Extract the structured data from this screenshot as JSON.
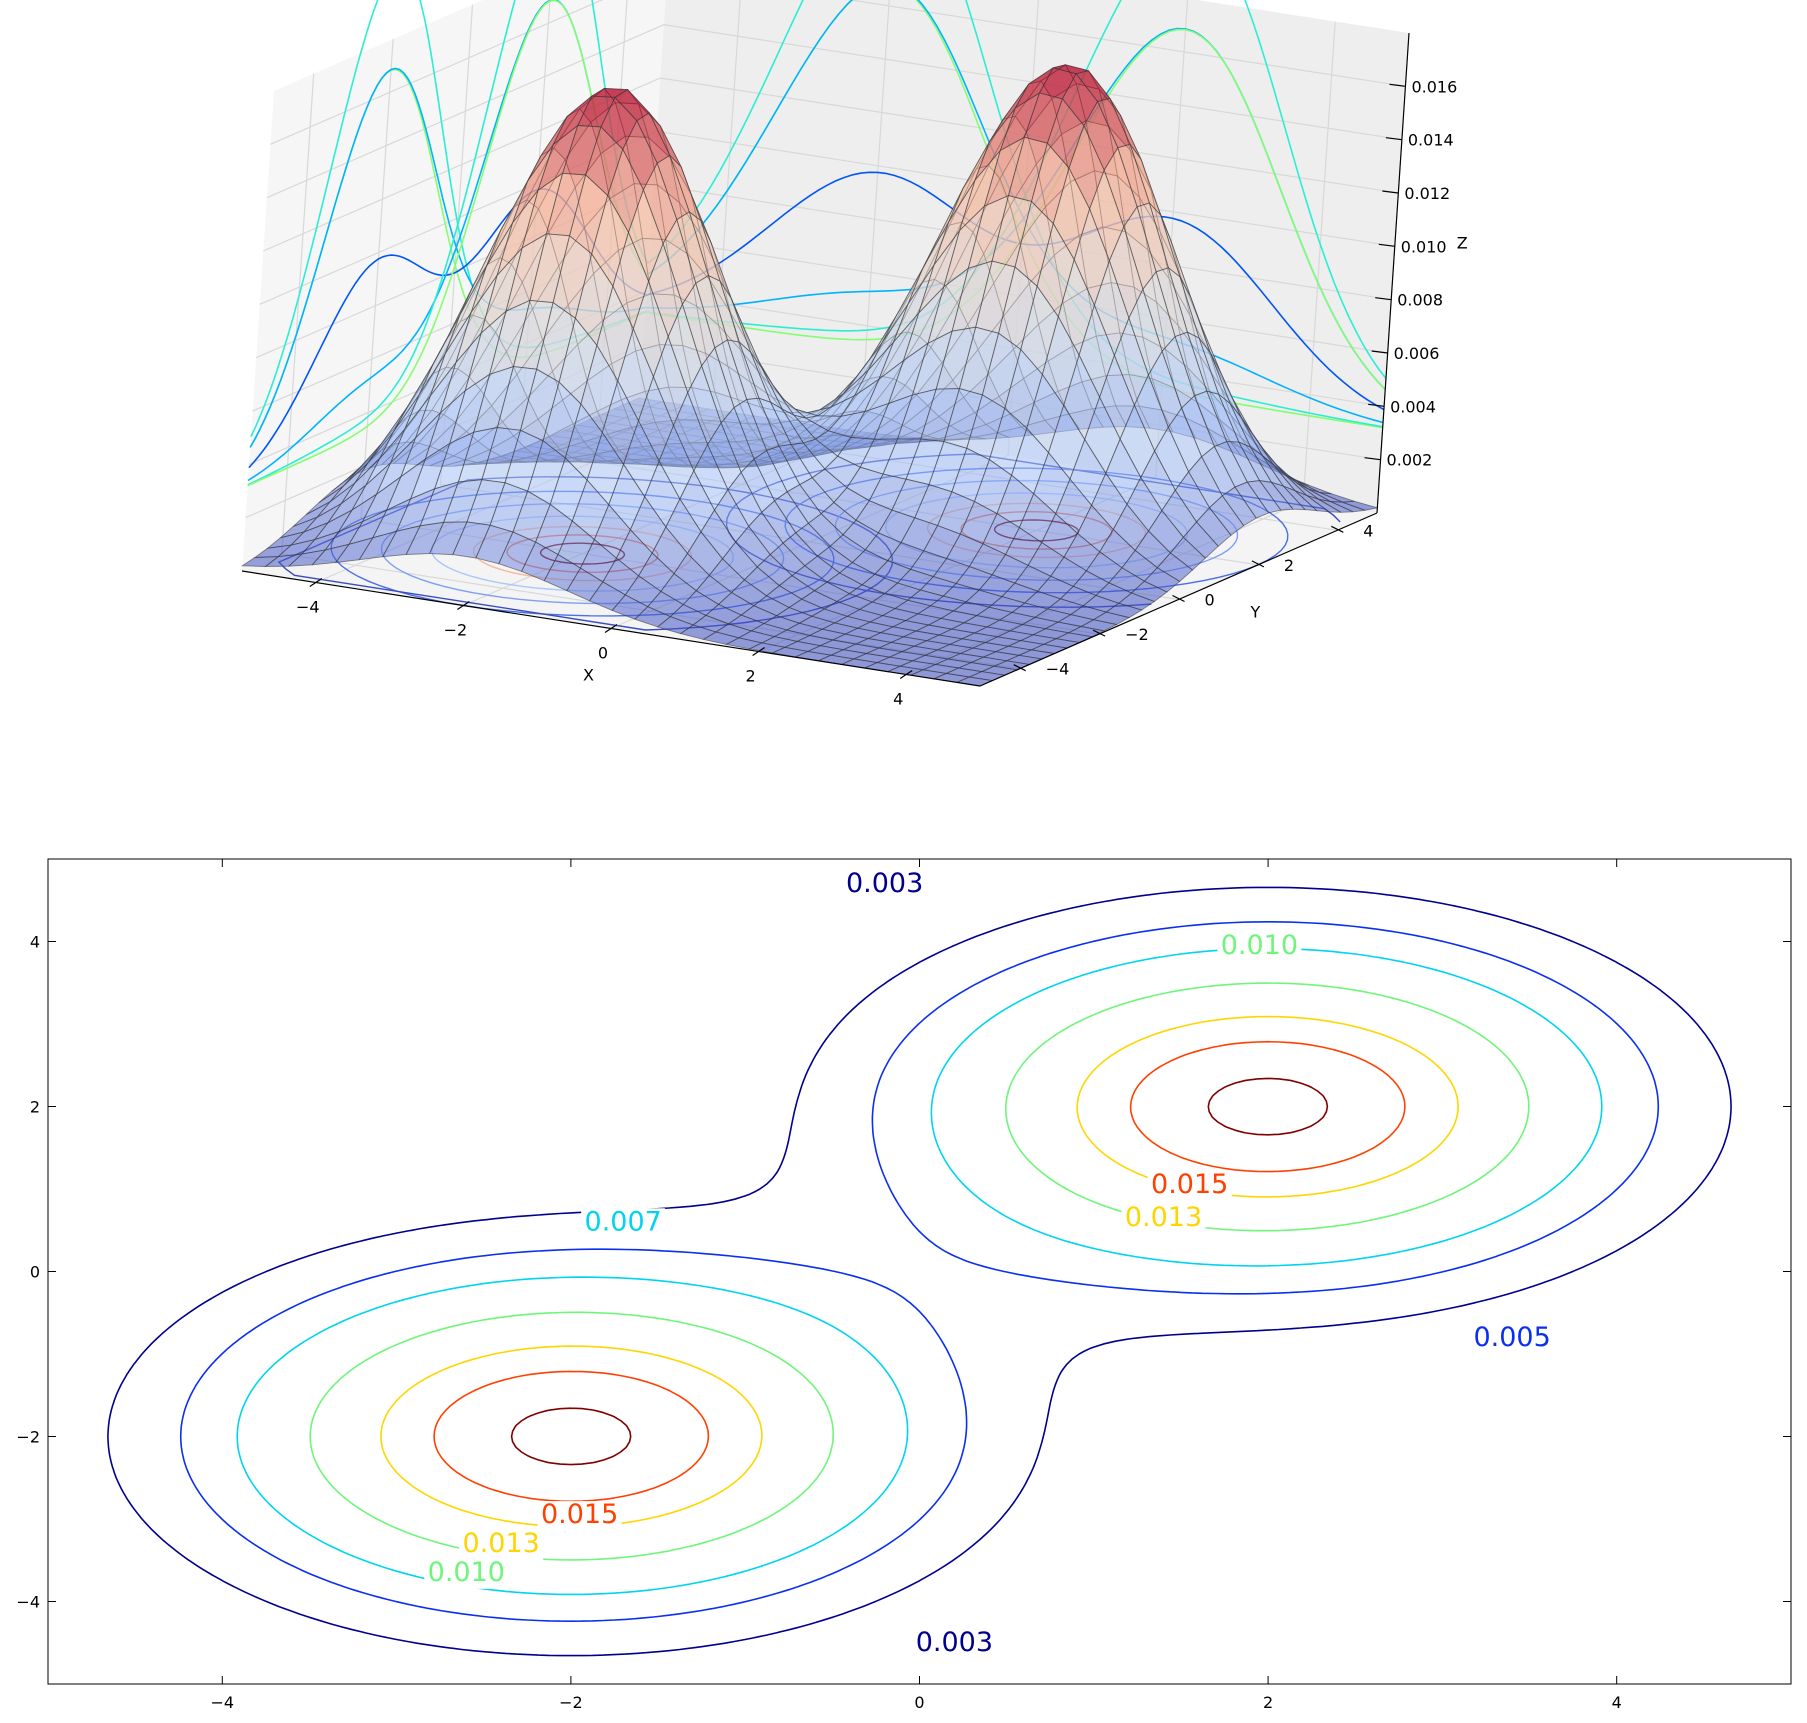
{
  "chart_data": [
    {
      "type": "surface3d",
      "title": "",
      "xlabel": "X",
      "ylabel": "Y",
      "zlabel": "Z",
      "xlim": [
        -5,
        5
      ],
      "ylim": [
        -5,
        5
      ],
      "zlim": [
        0,
        0.018
      ],
      "x_ticks": [
        -4,
        -2,
        0,
        2,
        4
      ],
      "y_ticks": [
        -4,
        -2,
        0,
        2,
        4
      ],
      "z_ticks": [
        0.002,
        0.004,
        0.006,
        0.008,
        0.01,
        0.012,
        0.014,
        0.016
      ],
      "x_tick_labels": [
        "−4",
        "−2",
        "0",
        "2",
        "4"
      ],
      "y_tick_labels": [
        "−4",
        "−2",
        "0",
        "2",
        "4"
      ],
      "z_tick_labels": [
        "0.002",
        "0.004",
        "0.006",
        "0.008",
        "0.010",
        "0.012",
        "0.014",
        "0.016"
      ],
      "peaks": [
        {
          "x": -2,
          "y": -2,
          "z": 0.0175
        },
        {
          "x": 2,
          "y": 2,
          "z": 0.0175
        }
      ],
      "colormap": [
        "#3b4cc0",
        "#aac7fd",
        "#dddddd",
        "#f7b89c",
        "#b40426"
      ],
      "projection_colormap": [
        "#00008f",
        "#0060ff",
        "#00e5ff",
        "#7dff7a",
        "#ffd700",
        "#ff3800",
        "#7f0000"
      ],
      "grid": true
    },
    {
      "type": "contour",
      "title": "",
      "xlabel": "",
      "ylabel": "",
      "xlim": [
        -5,
        5
      ],
      "ylim": [
        -5,
        5
      ],
      "x_ticks": [
        -4,
        -2,
        0,
        2,
        4
      ],
      "y_ticks": [
        -4,
        -2,
        0,
        2,
        4
      ],
      "x_tick_labels": [
        "−4",
        "−2",
        "0",
        "2",
        "4"
      ],
      "y_tick_labels": [
        "−4",
        "−2",
        "0",
        "2",
        "4"
      ],
      "levels": [
        0.003,
        0.005,
        0.007,
        0.01,
        0.013,
        0.015,
        0.017
      ],
      "level_colors": [
        "#00008f",
        "#0b2ff0",
        "#00d4f0",
        "#6ff57a",
        "#ffd500",
        "#ff4000",
        "#800000"
      ],
      "peaks": [
        {
          "x": -2,
          "y": -2,
          "z": 0.0175
        },
        {
          "x": 2,
          "y": 2,
          "z": 0.0175
        }
      ],
      "contour_labels": [
        {
          "text": "0.003",
          "x": -0.2,
          "y": 4.6,
          "color": "#00008f"
        },
        {
          "text": "0.010",
          "x": 1.95,
          "y": 3.85,
          "color": "#6ff57a"
        },
        {
          "text": "0.007",
          "x": -1.7,
          "y": 0.5,
          "color": "#00d4f0"
        },
        {
          "text": "0.015",
          "x": 1.55,
          "y": 0.95,
          "color": "#ff4000"
        },
        {
          "text": "0.013",
          "x": 1.4,
          "y": 0.55,
          "color": "#ffd500"
        },
        {
          "text": "0.005",
          "x": 3.4,
          "y": -0.9,
          "color": "#0b2ff0"
        },
        {
          "text": "0.015",
          "x": -1.95,
          "y": -3.05,
          "color": "#ff4000"
        },
        {
          "text": "0.013",
          "x": -2.4,
          "y": -3.4,
          "color": "#ffd500"
        },
        {
          "text": "0.010",
          "x": -2.6,
          "y": -3.75,
          "color": "#6ff57a"
        },
        {
          "text": "0.003",
          "x": 0.2,
          "y": -4.6,
          "color": "#00008f"
        }
      ],
      "grid": false
    }
  ]
}
